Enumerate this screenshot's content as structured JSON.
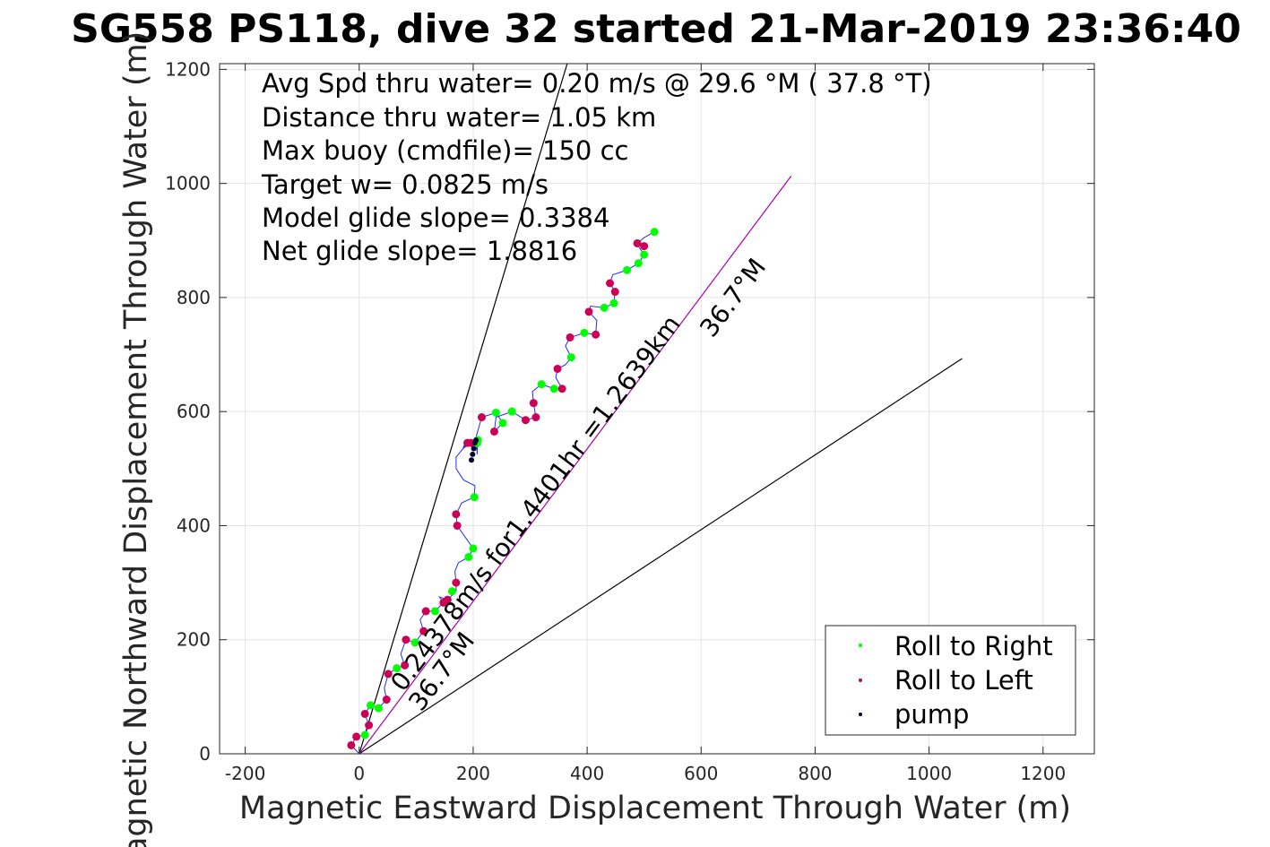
{
  "chart_data": {
    "type": "scatter",
    "title": "SG558 PS118, dive 32 started 21-Mar-2019 23:36:40",
    "xlabel": "Magnetic Eastward Displacement Through Water (m)",
    "ylabel": "Magnetic Northward Displacement Through Water (m)",
    "xlim": [
      -245,
      1290
    ],
    "ylim": [
      0,
      1210
    ],
    "xticks": [
      "-200",
      "0",
      "200",
      "400",
      "600",
      "800",
      "1000",
      "1200"
    ],
    "yticks": [
      "0",
      "200",
      "400",
      "600",
      "800",
      "1000",
      "1200"
    ],
    "grid": true,
    "legend_position": "bottom-right",
    "annotations": [
      "Avg Spd thru water=  0.20 m/s @  29.6 °M ( 37.8 °T)",
      "Distance thru water=  1.05 km",
      "Max buoy (cmdfile)= 150 cc",
      "Target w= 0.0825 m/s",
      "Model glide slope= 0.3384",
      "Net glide slope= 1.8816"
    ],
    "line_labels": {
      "main": "0.24378m/s for1.4401hr =1.2639km",
      "heading_near": "36.7°M",
      "heading_far": "36.7°M"
    },
    "reference_lines": [
      {
        "name": "left-bound",
        "x": [
          0,
          365
        ],
        "y": [
          0,
          1210
        ],
        "color": "#000000"
      },
      {
        "name": "right-bound",
        "x": [
          0,
          1058
        ],
        "y": [
          0,
          693
        ],
        "color": "#000000"
      },
      {
        "name": "net-heading",
        "x": [
          0,
          758
        ],
        "y": [
          0,
          1013
        ],
        "color": "#aa00aa"
      }
    ],
    "track": {
      "color": "#1f2bff",
      "x": [
        0,
        -14,
        -5,
        10,
        17,
        10,
        20,
        34,
        48,
        44,
        51,
        66,
        80,
        73,
        82,
        98,
        113,
        107,
        117,
        133,
        148,
        141,
        155,
        170,
        170,
        168,
        174,
        192,
        200,
        186,
        172,
        170,
        180,
        202,
        203,
        183,
        170,
        170,
        190,
        207,
        196,
        182,
        186,
        208,
        207,
        205,
        215,
        240,
        252,
        237,
        240,
        268,
        292,
        310,
        306,
        304,
        320,
        342,
        356,
        345,
        348,
        362,
        372,
        362,
        370,
        395,
        415,
        417,
        403,
        406,
        430,
        447,
        449,
        440,
        445,
        470,
        490,
        500,
        490,
        488,
        500,
        518
      ],
      "y": [
        0,
        15,
        30,
        33,
        50,
        70,
        85,
        80,
        95,
        115,
        140,
        150,
        155,
        175,
        200,
        195,
        215,
        235,
        250,
        250,
        265,
        275,
        270,
        285,
        300,
        320,
        335,
        345,
        360,
        380,
        400,
        420,
        440,
        450,
        470,
        480,
        500,
        520,
        545,
        545,
        545,
        535,
        545,
        550,
        525,
        555,
        590,
        598,
        580,
        565,
        590,
        600,
        585,
        590,
        615,
        635,
        648,
        640,
        640,
        660,
        675,
        682,
        695,
        715,
        730,
        738,
        735,
        760,
        775,
        785,
        782,
        790,
        810,
        825,
        840,
        848,
        860,
        875,
        890,
        895,
        905,
        915
      ]
    },
    "series": [
      {
        "name": "Roll to Right",
        "color": "#00ff00",
        "x": [
          10,
          20,
          34,
          66,
          98,
          133,
          163,
          192,
          200,
          202,
          207,
          208,
          240,
          252,
          268,
          320,
          342,
          372,
          395,
          430,
          447,
          470,
          490,
          500,
          518
        ],
        "y": [
          33,
          85,
          80,
          150,
          195,
          250,
          285,
          345,
          360,
          450,
          545,
          550,
          598,
          580,
          600,
          648,
          640,
          695,
          738,
          782,
          790,
          848,
          860,
          875,
          915
        ]
      },
      {
        "name": "Roll to Left",
        "color": "#cc0055",
        "x": [
          -14,
          -5,
          17,
          10,
          48,
          51,
          80,
          82,
          113,
          117,
          148,
          155,
          170,
          172,
          170,
          190,
          196,
          215,
          237,
          292,
          306,
          310,
          348,
          356,
          370,
          403,
          415,
          440,
          449,
          488,
          500
        ],
        "y": [
          15,
          30,
          50,
          70,
          95,
          140,
          155,
          200,
          215,
          250,
          265,
          270,
          300,
          400,
          420,
          545,
          545,
          590,
          565,
          585,
          615,
          590,
          675,
          640,
          730,
          775,
          735,
          825,
          810,
          895,
          890
        ]
      },
      {
        "name": "pump",
        "color": "#000033",
        "x": [
          197,
          199,
          201,
          203,
          205
        ],
        "y": [
          515,
          525,
          535,
          545,
          550
        ]
      }
    ]
  }
}
